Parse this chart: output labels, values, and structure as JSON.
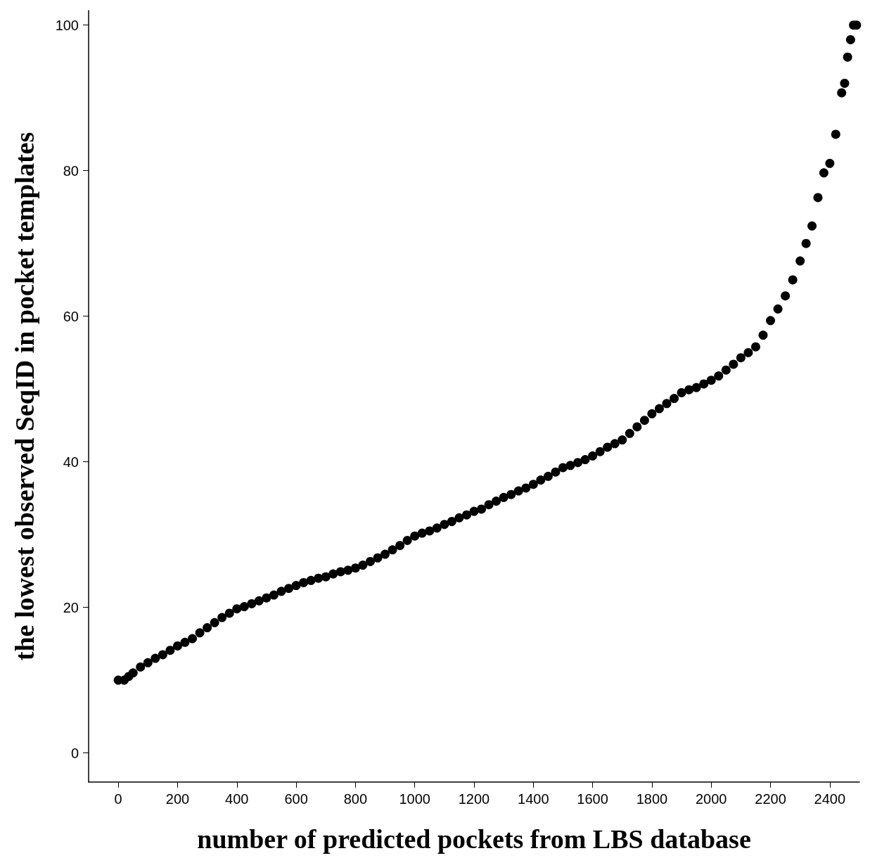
{
  "chart_data": {
    "type": "scatter",
    "xlabel": "number of predicted pockets from LBS database",
    "ylabel": "the lowest observed SeqID in pocket templates",
    "x": [
      0,
      20,
      35,
      50,
      75,
      100,
      125,
      150,
      175,
      200,
      225,
      250,
      275,
      300,
      325,
      350,
      375,
      400,
      425,
      450,
      475,
      500,
      525,
      550,
      575,
      600,
      625,
      650,
      675,
      700,
      725,
      750,
      775,
      800,
      825,
      850,
      875,
      900,
      925,
      950,
      975,
      1000,
      1025,
      1050,
      1075,
      1100,
      1125,
      1150,
      1175,
      1200,
      1225,
      1250,
      1275,
      1300,
      1325,
      1350,
      1375,
      1400,
      1425,
      1450,
      1475,
      1500,
      1525,
      1550,
      1575,
      1600,
      1625,
      1650,
      1675,
      1700,
      1725,
      1750,
      1775,
      1800,
      1825,
      1850,
      1875,
      1900,
      1925,
      1950,
      1975,
      2000,
      2025,
      2050,
      2075,
      2100,
      2125,
      2150,
      2175,
      2200,
      2225,
      2250,
      2275,
      2300,
      2320,
      2340,
      2360,
      2380,
      2400,
      2420,
      2440,
      2450,
      2460,
      2470,
      2480,
      2490
    ],
    "series": [
      {
        "color": "#000000",
        "values": [
          10,
          10,
          10.5,
          11,
          11.8,
          12.4,
          13,
          13.5,
          14.1,
          14.7,
          15.2,
          15.7,
          16.5,
          17.2,
          17.9,
          18.6,
          19.2,
          19.8,
          20.1,
          20.5,
          20.9,
          21.3,
          21.7,
          22.2,
          22.6,
          23,
          23.4,
          23.7,
          24,
          24.2,
          24.6,
          24.9,
          25.1,
          25.4,
          25.8,
          26.3,
          26.8,
          27.3,
          27.9,
          28.5,
          29.2,
          29.8,
          30.2,
          30.5,
          30.9,
          31.4,
          31.8,
          32.3,
          32.7,
          33.2,
          33.5,
          34.1,
          34.6,
          35.1,
          35.5,
          36,
          36.4,
          36.9,
          37.5,
          38,
          38.6,
          39.2,
          39.5,
          39.9,
          40.3,
          40.8,
          41.4,
          42,
          42.5,
          43,
          43.9,
          44.8,
          45.7,
          46.6,
          47.3,
          48,
          48.7,
          49.5,
          49.9,
          50.2,
          50.7,
          51.2,
          51.8,
          52.6,
          53.4,
          54.3,
          55,
          55.8,
          57.4,
          59.4,
          61,
          62.8,
          65,
          67.6,
          70,
          72.4,
          76.3,
          79.7,
          81,
          85,
          90.7,
          92,
          95.6,
          98,
          100,
          100
        ]
      }
    ],
    "xlim": [
      -100,
      2500
    ],
    "ylim": [
      -4,
      102
    ],
    "xticks": [
      0,
      200,
      400,
      600,
      800,
      1000,
      1200,
      1400,
      1600,
      1800,
      2000,
      2200,
      2400
    ],
    "yticks": [
      0,
      20,
      40,
      60,
      80,
      100
    ],
    "grid": false,
    "marker": "circle"
  }
}
